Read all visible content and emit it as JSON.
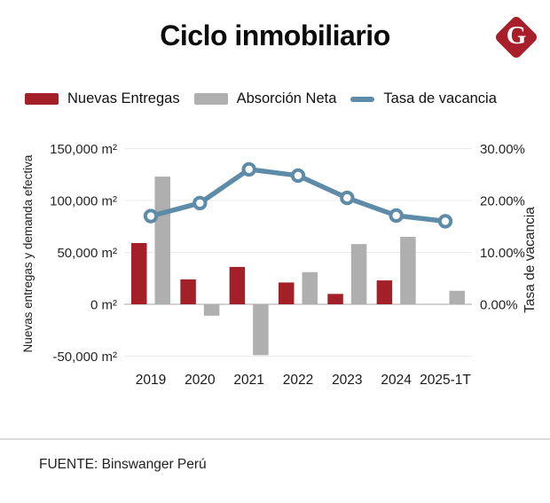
{
  "header": {
    "title": "Ciclo inmobiliario",
    "logo": {
      "letter": "G",
      "color": "#A81E2B"
    }
  },
  "legend": {
    "items": [
      {
        "label": "Nuevas Entregas",
        "swatch": "bar",
        "color": "#A32028"
      },
      {
        "label": "Absorción Neta",
        "swatch": "bar",
        "color": "#AFAFAF"
      },
      {
        "label": "Tasa de vacancia",
        "swatch": "line",
        "color": "#5E8CA8"
      }
    ]
  },
  "footer": {
    "source": "FUENTE: Binswanger Perú"
  },
  "chart_data": {
    "type": "bar",
    "subtype": "combo-bar-line-dual-axis",
    "title": "Ciclo inmobiliario",
    "categories": [
      "2019",
      "2020",
      "2021",
      "2022",
      "2023",
      "2024",
      "2025-1T"
    ],
    "series": [
      {
        "name": "Nuevas Entregas",
        "type": "bar",
        "axis": "left",
        "color": "#A32028",
        "values": [
          59000,
          24000,
          36000,
          21000,
          10000,
          23000,
          null
        ]
      },
      {
        "name": "Absorción Neta",
        "type": "bar",
        "axis": "left",
        "color": "#AFAFAF",
        "values": [
          123000,
          -11000,
          -49000,
          31000,
          58000,
          65000,
          13000
        ]
      },
      {
        "name": "Tasa de vacancia",
        "type": "line",
        "axis": "right",
        "color": "#5E8CA8",
        "values": [
          17.0,
          19.5,
          26.0,
          24.8,
          20.5,
          17.1,
          16.0
        ]
      }
    ],
    "left_axis": {
      "label": "Nuevas entregas y demanda efectiva",
      "unit": "m²",
      "range": [
        -50000,
        150000
      ],
      "ticks": [
        {
          "value": 150000,
          "label": "150,000 m²"
        },
        {
          "value": 100000,
          "label": "100,000 m²"
        },
        {
          "value": 50000,
          "label": "50,000 m²"
        },
        {
          "value": 0,
          "label": "0 m²"
        },
        {
          "value": -50000,
          "label": "-50,000 m²"
        }
      ]
    },
    "right_axis": {
      "label": "Tasa de vacancia",
      "unit": "%",
      "range": [
        0,
        30
      ],
      "ticks": [
        {
          "value": 30,
          "label": "30.00%"
        },
        {
          "value": 20,
          "label": "20.00%"
        },
        {
          "value": 10,
          "label": "10.00%"
        },
        {
          "value": 0,
          "label": "0.00%"
        }
      ]
    },
    "grid": true,
    "legend_position": "top"
  }
}
